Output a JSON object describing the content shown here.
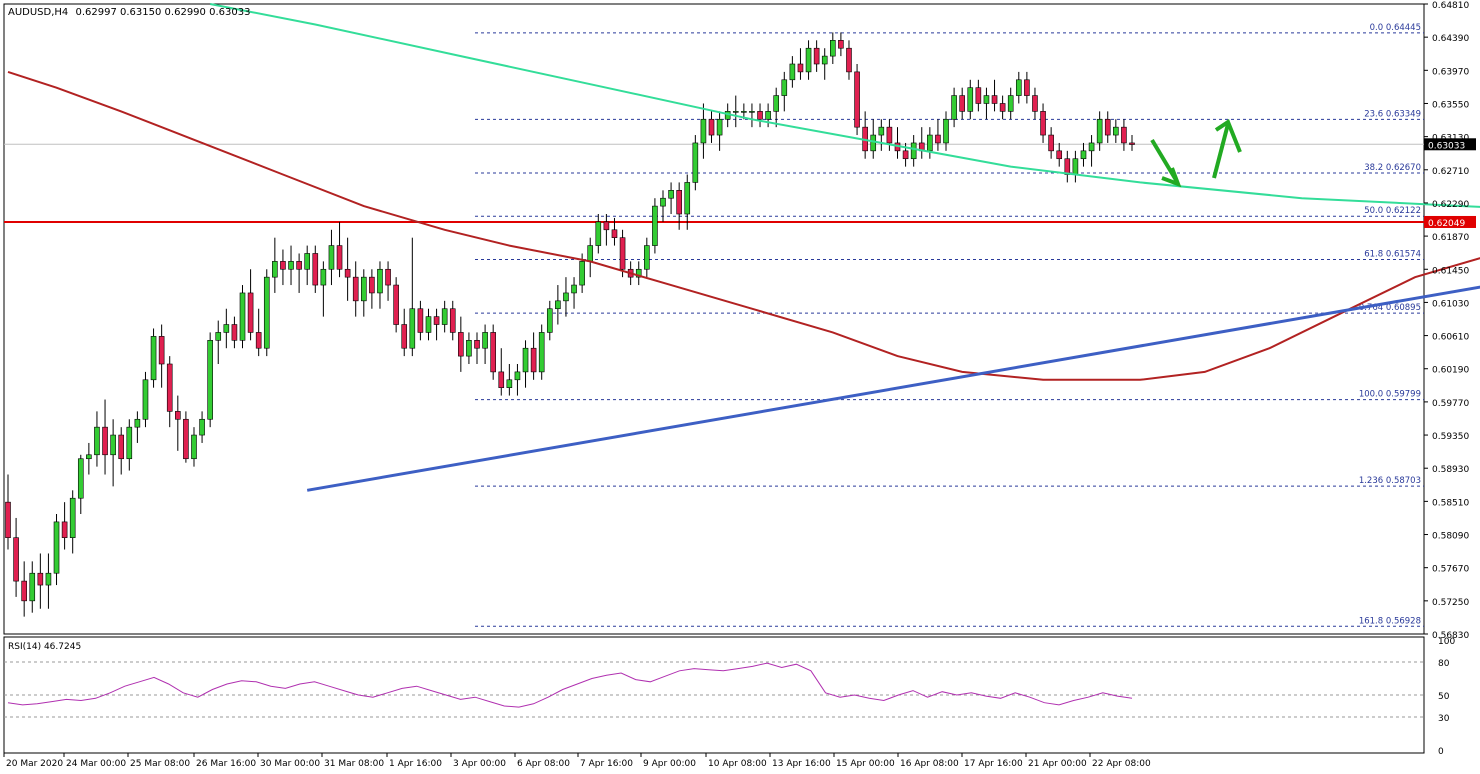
{
  "chart_data": {
    "type": "candlestick",
    "symbol_line": {
      "symbol": "AUDUSD,H4",
      "ohlc": "0.62997 0.63150 0.62990 0.63033"
    },
    "current_price": "0.63033",
    "support_level": "0.62049",
    "y_ticks": [
      "0.64810",
      "0.64390",
      "0.63970",
      "0.63550",
      "0.63130",
      "0.62710",
      "0.62290",
      "0.61870",
      "0.61450",
      "0.61030",
      "0.60610",
      "0.60190",
      "0.59770",
      "0.59350",
      "0.58930",
      "0.58510",
      "0.58090",
      "0.57670",
      "0.57250",
      "0.56830"
    ],
    "x_ticks": [
      "20 Mar 2020",
      "24 Mar 00:00",
      "25 Mar 08:00",
      "26 Mar 16:00",
      "30 Mar 00:00",
      "31 Mar 08:00",
      "1 Apr 16:00",
      "3 Apr 00:00",
      "6 Apr 08:00",
      "7 Apr 16:00",
      "9 Apr 00:00",
      "10 Apr 08:00",
      "13 Apr 16:00",
      "15 Apr 00:00",
      "16 Apr 08:00",
      "17 Apr 16:00",
      "21 Apr 00:00",
      "22 Apr 08:00"
    ],
    "fib_levels": [
      {
        "label": "0.0 0.64445",
        "value": 0.64445
      },
      {
        "label": "23.6 0.63349",
        "value": 0.63349
      },
      {
        "label": "38.2 0.62670",
        "value": 0.6267
      },
      {
        "label": "50.0 0.62122",
        "value": 0.62122
      },
      {
        "label": "61.8 0.61574",
        "value": 0.61574
      },
      {
        "label": "0.764 0.60895",
        "value": 0.60895
      },
      {
        "label": "100.0 0.59799",
        "value": 0.59799
      },
      {
        "label": "1.236 0.58703",
        "value": 0.58703
      },
      {
        "label": "161.8 0.56928",
        "value": 0.56928
      }
    ],
    "colors": {
      "bull": "#33cc33",
      "bear": "#e02050",
      "trendline": "#3d5fc4",
      "ma_fast": "#b22222",
      "ma_slow": "#33dd99",
      "support": "#e00000",
      "rsi": "#b030b0",
      "arrow": "#22aa22"
    },
    "candles": [
      [
        0.585,
        0.5885,
        0.579,
        0.5805
      ],
      [
        0.5805,
        0.583,
        0.573,
        0.575
      ],
      [
        0.575,
        0.5775,
        0.5705,
        0.5725
      ],
      [
        0.5725,
        0.5775,
        0.571,
        0.576
      ],
      [
        0.576,
        0.5785,
        0.5715,
        0.5745
      ],
      [
        0.5745,
        0.5785,
        0.5715,
        0.576
      ],
      [
        0.576,
        0.5835,
        0.5745,
        0.5825
      ],
      [
        0.5825,
        0.585,
        0.579,
        0.5805
      ],
      [
        0.5805,
        0.5865,
        0.5785,
        0.5855
      ],
      [
        0.5855,
        0.591,
        0.5835,
        0.5905
      ],
      [
        0.5905,
        0.5925,
        0.5885,
        0.591
      ],
      [
        0.591,
        0.5965,
        0.5895,
        0.5945
      ],
      [
        0.5945,
        0.598,
        0.5885,
        0.591
      ],
      [
        0.591,
        0.5955,
        0.587,
        0.5935
      ],
      [
        0.5935,
        0.5945,
        0.5885,
        0.5905
      ],
      [
        0.5905,
        0.5955,
        0.589,
        0.5945
      ],
      [
        0.5945,
        0.5965,
        0.5925,
        0.5955
      ],
      [
        0.5955,
        0.6015,
        0.5945,
        0.6005
      ],
      [
        0.6005,
        0.607,
        0.5995,
        0.606
      ],
      [
        0.606,
        0.6075,
        0.5995,
        0.6025
      ],
      [
        0.6025,
        0.6035,
        0.5945,
        0.5965
      ],
      [
        0.5965,
        0.5985,
        0.5915,
        0.5955
      ],
      [
        0.5955,
        0.5965,
        0.59,
        0.5905
      ],
      [
        0.5905,
        0.5945,
        0.5895,
        0.5935
      ],
      [
        0.5935,
        0.5965,
        0.5925,
        0.5955
      ],
      [
        0.5955,
        0.6065,
        0.5945,
        0.6055
      ],
      [
        0.6055,
        0.608,
        0.6025,
        0.6065
      ],
      [
        0.6065,
        0.6095,
        0.6045,
        0.6075
      ],
      [
        0.6075,
        0.6085,
        0.6045,
        0.6055
      ],
      [
        0.6055,
        0.6125,
        0.6045,
        0.6115
      ],
      [
        0.6115,
        0.6145,
        0.6055,
        0.6065
      ],
      [
        0.6065,
        0.6095,
        0.6035,
        0.6045
      ],
      [
        0.6045,
        0.6145,
        0.6035,
        0.6135
      ],
      [
        0.6135,
        0.6185,
        0.6115,
        0.6155
      ],
      [
        0.6155,
        0.617,
        0.6125,
        0.6145
      ],
      [
        0.6145,
        0.6175,
        0.6125,
        0.6155
      ],
      [
        0.6155,
        0.6165,
        0.6115,
        0.6145
      ],
      [
        0.6145,
        0.6175,
        0.6125,
        0.6165
      ],
      [
        0.6165,
        0.6175,
        0.6115,
        0.6125
      ],
      [
        0.6125,
        0.6155,
        0.6085,
        0.6145
      ],
      [
        0.6145,
        0.6195,
        0.6125,
        0.6175
      ],
      [
        0.6175,
        0.6205,
        0.6135,
        0.6145
      ],
      [
        0.6145,
        0.6185,
        0.6105,
        0.6135
      ],
      [
        0.6135,
        0.6155,
        0.6085,
        0.6105
      ],
      [
        0.6105,
        0.6145,
        0.6085,
        0.6135
      ],
      [
        0.6135,
        0.6145,
        0.6095,
        0.6115
      ],
      [
        0.6115,
        0.6155,
        0.6095,
        0.6145
      ],
      [
        0.6145,
        0.6155,
        0.6105,
        0.6125
      ],
      [
        0.6125,
        0.6135,
        0.6065,
        0.6075
      ],
      [
        0.6075,
        0.6095,
        0.6035,
        0.6045
      ],
      [
        0.6045,
        0.6185,
        0.6035,
        0.6095
      ],
      [
        0.6095,
        0.6105,
        0.6055,
        0.6065
      ],
      [
        0.6065,
        0.6095,
        0.6055,
        0.6085
      ],
      [
        0.6085,
        0.6095,
        0.6055,
        0.6075
      ],
      [
        0.6075,
        0.6105,
        0.6065,
        0.6095
      ],
      [
        0.6095,
        0.6105,
        0.6055,
        0.6065
      ],
      [
        0.6065,
        0.6085,
        0.6015,
        0.6035
      ],
      [
        0.6035,
        0.6065,
        0.6025,
        0.6055
      ],
      [
        0.6055,
        0.6065,
        0.6025,
        0.6045
      ],
      [
        0.6045,
        0.6075,
        0.6025,
        0.6065
      ],
      [
        0.6065,
        0.6075,
        0.6005,
        0.6015
      ],
      [
        0.6015,
        0.6045,
        0.5985,
        0.5995
      ],
      [
        0.5995,
        0.6025,
        0.5985,
        0.6005
      ],
      [
        0.6005,
        0.6025,
        0.5985,
        0.6015
      ],
      [
        0.6015,
        0.6055,
        0.5995,
        0.6045
      ],
      [
        0.6045,
        0.6065,
        0.6005,
        0.6015
      ],
      [
        0.6015,
        0.6075,
        0.6005,
        0.6065
      ],
      [
        0.6065,
        0.6105,
        0.6055,
        0.6095
      ],
      [
        0.6095,
        0.6125,
        0.6075,
        0.6105
      ],
      [
        0.6105,
        0.6135,
        0.6085,
        0.6115
      ],
      [
        0.6115,
        0.6135,
        0.6095,
        0.6125
      ],
      [
        0.6125,
        0.6165,
        0.6115,
        0.6155
      ],
      [
        0.6155,
        0.6185,
        0.6135,
        0.6175
      ],
      [
        0.6175,
        0.6215,
        0.6165,
        0.6205
      ],
      [
        0.6205,
        0.6215,
        0.6175,
        0.6195
      ],
      [
        0.6195,
        0.621,
        0.6175,
        0.6185
      ],
      [
        0.6185,
        0.6195,
        0.6135,
        0.6145
      ],
      [
        0.6145,
        0.6155,
        0.6125,
        0.6135
      ],
      [
        0.6135,
        0.6155,
        0.6125,
        0.6145
      ],
      [
        0.6145,
        0.6185,
        0.6135,
        0.6175
      ],
      [
        0.6175,
        0.6235,
        0.6165,
        0.6225
      ],
      [
        0.6225,
        0.6245,
        0.6205,
        0.6235
      ],
      [
        0.6235,
        0.6255,
        0.6215,
        0.6245
      ],
      [
        0.6245,
        0.6255,
        0.6195,
        0.6215
      ],
      [
        0.6215,
        0.6265,
        0.6195,
        0.6255
      ],
      [
        0.6255,
        0.6315,
        0.6245,
        0.6305
      ],
      [
        0.6305,
        0.6355,
        0.6285,
        0.6335
      ],
      [
        0.6335,
        0.6345,
        0.6305,
        0.6315
      ],
      [
        0.6315,
        0.6345,
        0.6295,
        0.6335
      ],
      [
        0.6335,
        0.6355,
        0.6325,
        0.6345
      ],
      [
        0.6345,
        0.6365,
        0.6325,
        0.6345
      ],
      [
        0.6345,
        0.6355,
        0.6335,
        0.6345
      ],
      [
        0.6345,
        0.6355,
        0.6325,
        0.6345
      ],
      [
        0.6345,
        0.6355,
        0.6325,
        0.6335
      ],
      [
        0.6335,
        0.6355,
        0.6325,
        0.6345
      ],
      [
        0.6345,
        0.6375,
        0.6325,
        0.6365
      ],
      [
        0.6365,
        0.6395,
        0.6345,
        0.6385
      ],
      [
        0.6385,
        0.6415,
        0.6375,
        0.6405
      ],
      [
        0.6405,
        0.6425,
        0.6385,
        0.6395
      ],
      [
        0.6395,
        0.6435,
        0.6385,
        0.6425
      ],
      [
        0.6425,
        0.6435,
        0.6395,
        0.6405
      ],
      [
        0.6405,
        0.6425,
        0.6385,
        0.6415
      ],
      [
        0.6415,
        0.6445,
        0.6405,
        0.6435
      ],
      [
        0.6435,
        0.6445,
        0.6415,
        0.6425
      ],
      [
        0.6425,
        0.6435,
        0.6385,
        0.6395
      ],
      [
        0.6395,
        0.6405,
        0.6315,
        0.6325
      ],
      [
        0.6325,
        0.6345,
        0.6285,
        0.6295
      ],
      [
        0.6295,
        0.6335,
        0.6285,
        0.6315
      ],
      [
        0.6315,
        0.6335,
        0.6295,
        0.6325
      ],
      [
        0.6325,
        0.6335,
        0.6295,
        0.6305
      ],
      [
        0.6305,
        0.6325,
        0.6285,
        0.6295
      ],
      [
        0.6295,
        0.6305,
        0.6275,
        0.6285
      ],
      [
        0.6285,
        0.6315,
        0.6275,
        0.6305
      ],
      [
        0.6305,
        0.6325,
        0.6285,
        0.6295
      ],
      [
        0.6295,
        0.6325,
        0.6285,
        0.6315
      ],
      [
        0.6315,
        0.6335,
        0.6295,
        0.6305
      ],
      [
        0.6305,
        0.6345,
        0.6295,
        0.6335
      ],
      [
        0.6335,
        0.6375,
        0.6325,
        0.6365
      ],
      [
        0.6365,
        0.6375,
        0.6335,
        0.6345
      ],
      [
        0.6345,
        0.6385,
        0.6335,
        0.6375
      ],
      [
        0.6375,
        0.6385,
        0.6345,
        0.6355
      ],
      [
        0.6355,
        0.6375,
        0.6335,
        0.6365
      ],
      [
        0.6365,
        0.6385,
        0.6345,
        0.6355
      ],
      [
        0.6355,
        0.6365,
        0.6335,
        0.6345
      ],
      [
        0.6345,
        0.6375,
        0.6335,
        0.6365
      ],
      [
        0.6365,
        0.6395,
        0.6355,
        0.6385
      ],
      [
        0.6385,
        0.6395,
        0.6355,
        0.6365
      ],
      [
        0.6365,
        0.6375,
        0.6335,
        0.6345
      ],
      [
        0.6345,
        0.6355,
        0.6305,
        0.6315
      ],
      [
        0.6315,
        0.6325,
        0.6285,
        0.6295
      ],
      [
        0.6295,
        0.6305,
        0.6275,
        0.6285
      ],
      [
        0.6285,
        0.6295,
        0.6255,
        0.6265
      ],
      [
        0.6265,
        0.6295,
        0.6255,
        0.6285
      ],
      [
        0.6285,
        0.6305,
        0.6275,
        0.6295
      ],
      [
        0.6295,
        0.6315,
        0.6275,
        0.6305
      ],
      [
        0.6305,
        0.6345,
        0.6295,
        0.6335
      ],
      [
        0.6335,
        0.6345,
        0.6305,
        0.6315
      ],
      [
        0.6315,
        0.6335,
        0.6305,
        0.6325
      ],
      [
        0.6325,
        0.6335,
        0.6295,
        0.6305
      ],
      [
        0.6305,
        0.6315,
        0.6295,
        0.6303
      ]
    ],
    "ma_fast": [
      [
        0.6395,
        0
      ],
      [
        0.6375,
        6
      ],
      [
        0.6345,
        14
      ],
      [
        0.6305,
        24
      ],
      [
        0.6265,
        34
      ],
      [
        0.6225,
        44
      ],
      [
        0.6195,
        54
      ],
      [
        0.6175,
        62
      ],
      [
        0.6155,
        72
      ],
      [
        0.6125,
        82
      ],
      [
        0.6095,
        92
      ],
      [
        0.6065,
        102
      ],
      [
        0.6035,
        110
      ],
      [
        0.6015,
        118
      ],
      [
        0.6005,
        128
      ],
      [
        0.6005,
        140
      ],
      [
        0.6015,
        148
      ],
      [
        0.6045,
        156
      ],
      [
        0.6095,
        166
      ],
      [
        0.6135,
        174
      ],
      [
        0.6165,
        184
      ],
      [
        0.6185,
        194
      ],
      [
        0.6205,
        206
      ],
      [
        0.6225,
        218
      ],
      [
        0.6235,
        228
      ],
      [
        0.6245,
        240
      ]
    ],
    "ma_slow": [
      [
        0.6481,
        25
      ],
      [
        0.6455,
        38
      ],
      [
        0.6415,
        56
      ],
      [
        0.6375,
        74
      ],
      [
        0.6335,
        92
      ],
      [
        0.6305,
        108
      ],
      [
        0.6275,
        124
      ],
      [
        0.6255,
        140
      ],
      [
        0.6235,
        160
      ],
      [
        0.6225,
        180
      ],
      [
        0.6215,
        200
      ],
      [
        0.6205,
        214
      ],
      [
        0.6185,
        232
      ],
      [
        0.6175,
        240
      ]
    ],
    "rsi": {
      "label": "RSI(14) 46.7245",
      "ticks": [
        "100",
        "80",
        "50",
        "30",
        "0"
      ],
      "values": [
        43,
        41,
        42,
        44,
        46,
        45,
        47,
        52,
        58,
        62,
        66,
        60,
        52,
        48,
        55,
        60,
        63,
        62,
        58,
        56,
        60,
        62,
        58,
        54,
        50,
        48,
        52,
        56,
        58,
        54,
        50,
        46,
        48,
        44,
        40,
        39,
        42,
        48,
        55,
        60,
        65,
        68,
        70,
        64,
        62,
        67,
        72,
        74,
        73,
        72,
        74,
        76,
        79,
        75,
        78,
        72,
        52,
        48,
        50,
        47,
        45,
        50,
        54,
        48,
        53,
        50,
        52,
        49,
        47,
        52,
        48,
        43,
        41,
        45,
        48,
        52,
        49,
        47
      ]
    },
    "ylim": [
      0.5683,
      0.6481
    ]
  }
}
